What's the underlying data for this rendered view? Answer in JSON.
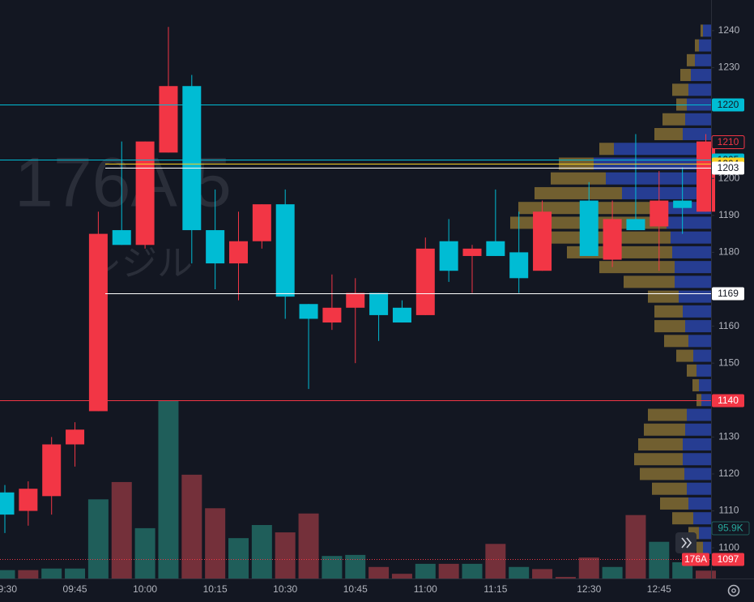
{
  "chart_data": {
    "type": "candlestick",
    "watermark": "176A 5",
    "watermark_sub": "レジル",
    "categories": [
      "09:30",
      null,
      null,
      "09:45",
      null,
      null,
      "10:00",
      null,
      null,
      "10:15",
      null,
      null,
      "10:30",
      null,
      null,
      "10:45",
      null,
      null,
      "11:00",
      null,
      null,
      "11:15",
      null,
      null,
      null,
      "12:30",
      null,
      null,
      "12:45",
      null,
      null
    ],
    "open": [
      1115,
      1110,
      1114,
      1128,
      1137,
      1186,
      1182,
      1207,
      1225,
      1186,
      1177,
      1183,
      1193,
      1166,
      1161,
      1165,
      1169,
      1165,
      1163,
      1183,
      1179,
      1183,
      1180,
      1175,
      null,
      1194,
      1178,
      1189,
      1187,
      1194,
      1191
    ],
    "high": [
      1117,
      1118,
      1130,
      1134,
      1191,
      1210,
      1210,
      1241,
      1228,
      1197,
      1191,
      1193,
      1197,
      1166,
      1174,
      1173,
      1169,
      1167,
      1184,
      1189,
      1182,
      1197,
      1191,
      1194,
      null,
      1199,
      1194,
      1212,
      1202,
      1203,
      1212
    ],
    "low": [
      1104,
      1106,
      1109,
      1122,
      1137,
      1182,
      1181,
      1207,
      1177,
      1170,
      1167,
      1181,
      1162,
      1143,
      1159,
      1150,
      1156,
      1161,
      1163,
      1172,
      1169,
      1179,
      1169,
      1175,
      null,
      1179,
      1176,
      1186,
      1175,
      1185,
      1191
    ],
    "close": [
      1109,
      1116,
      1128,
      1132,
      1185,
      1182,
      1210,
      1225,
      1186,
      1177,
      1183,
      1193,
      1168,
      1162,
      1165,
      1169,
      1163,
      1161,
      1181,
      1175,
      1181,
      1179,
      1173,
      1191,
      null,
      1179,
      1189,
      1186,
      1194,
      1192,
      1210
    ],
    "up_color": "#f23645",
    "down_color": "#00bcd4",
    "ylim": [
      1091.7,
      1248.3
    ],
    "yticks": [
      1100,
      1110,
      1120,
      1130,
      1150,
      1160,
      1180,
      1190,
      1200,
      1230,
      1240
    ],
    "volume": {
      "values": [
        16,
        16,
        19,
        19,
        151,
        184,
        96,
        340,
        198,
        134,
        77,
        102,
        88,
        124,
        43,
        45,
        22,
        9,
        28,
        28,
        28,
        66,
        22,
        18,
        3,
        40,
        22,
        121,
        70,
        31,
        15
      ],
      "colors": [
        "#1f5e5a",
        "#74303a",
        "#1f5e5a",
        "#1f5e5a",
        "#1f5e5a",
        "#74303a",
        "#1f5e5a",
        "#1f5e5a",
        "#74303a",
        "#74303a",
        "#1f5e5a",
        "#1f5e5a",
        "#74303a",
        "#74303a",
        "#1f5e5a",
        "#1f5e5a",
        "#74303a",
        "#74303a",
        "#1f5e5a",
        "#74303a",
        "#1f5e5a",
        "#74303a",
        "#1f5e5a",
        "#74303a",
        "#74303a",
        "#74303a",
        "#1f5e5a",
        "#74303a",
        "#1f5e5a",
        "#1f5e5a",
        "#74303a"
      ],
      "ylim": [
        0,
        340
      ],
      "last": {
        "value": 95.9,
        "label": "95.9K"
      }
    },
    "volume_profile": {
      "prices": [
        1240,
        1236,
        1232,
        1228,
        1224,
        1220,
        1216,
        1212,
        1208,
        1204,
        1200,
        1196,
        1192,
        1188,
        1184,
        1180,
        1176,
        1172,
        1168,
        1164,
        1160,
        1156,
        1152,
        1148,
        1144,
        1140,
        1136,
        1132,
        1128,
        1124,
        1120,
        1116,
        1112,
        1108,
        1104,
        1100
      ],
      "down": [
        10,
        15,
        20,
        25,
        28,
        30,
        32,
        35,
        120,
        145,
        130,
        110,
        70,
        55,
        50,
        48,
        45,
        45,
        40,
        35,
        32,
        28,
        22,
        18,
        15,
        12,
        30,
        32,
        35,
        35,
        33,
        30,
        28,
        22,
        15,
        10
      ],
      "up": [
        3,
        5,
        10,
        13,
        20,
        13,
        28,
        35,
        18,
        43,
        68,
        108,
        168,
        193,
        168,
        130,
        93,
        63,
        38,
        35,
        38,
        30,
        21,
        12,
        8,
        6,
        48,
        51,
        55,
        60,
        55,
        43,
        35,
        26,
        13,
        8
      ],
      "down_color": "#2a44a6",
      "up_color": "#8a7235",
      "xlim": [
        0,
        260
      ]
    },
    "price_labels": [
      {
        "value": 1220,
        "color": "#00bcd4",
        "text_color": "#131722",
        "line": "full"
      },
      {
        "value": 1210,
        "color": "#131722",
        "text_color": "#f23645",
        "line": "none"
      },
      {
        "value": 1205,
        "color": "#00bcd4",
        "text_color": "#131722",
        "line": "full"
      },
      {
        "value": 1204,
        "color": "#f7d023",
        "text_color": "#131722",
        "line": "partial"
      },
      {
        "value": 1203,
        "color": "#ffffff",
        "text_color": "#131722",
        "line": "partial"
      },
      {
        "value": 1169,
        "color": "#ffffff",
        "text_color": "#131722",
        "line": "partial"
      },
      {
        "value": 1140,
        "color": "#f23645",
        "text_color": "#ffffff",
        "line": "full"
      },
      {
        "value": 1097,
        "color": "#f23645",
        "text_color": "#ffffff",
        "line": "dotted",
        "tag": "176A"
      }
    ]
  }
}
